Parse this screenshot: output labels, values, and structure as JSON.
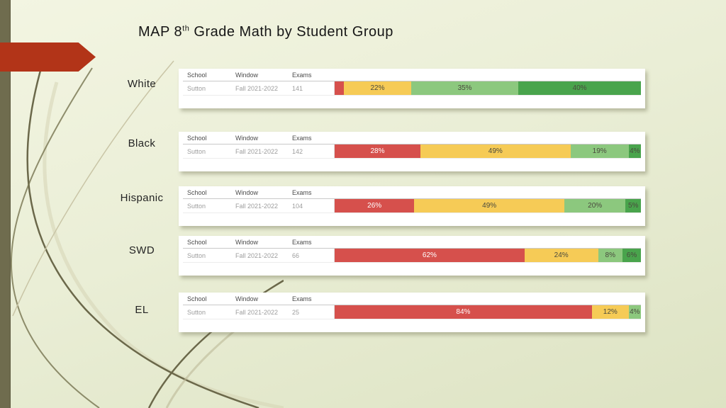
{
  "slide_title": {
    "text_before_sup": "MAP 8",
    "sup": "th",
    "text_after_sup": " Grade Math by Student Group"
  },
  "table_headers": {
    "school": "School",
    "window": "Window",
    "exams": "Exams"
  },
  "colors": {
    "red": "#d6504c",
    "yellow": "#f6cb56",
    "light_green": "#8cc87e",
    "dark_green": "#49a44c",
    "arrow": "#b23418",
    "sidebar": "#6f6c4e",
    "segment_text_dark": "#4a4a3e",
    "segment_text_light": "#ffffff"
  },
  "chart_data": [
    {
      "type": "bar",
      "group": "White",
      "table_row": {
        "school": "Sutton",
        "window": "Fall 2021-2022",
        "exams": "141"
      },
      "segments": [
        {
          "category": "red",
          "value": 3,
          "label": ""
        },
        {
          "category": "yellow",
          "value": 22,
          "label": "22%"
        },
        {
          "category": "light_green",
          "value": 35,
          "label": "35%"
        },
        {
          "category": "dark_green",
          "value": 40,
          "label": "40%"
        }
      ]
    },
    {
      "type": "bar",
      "group": "Black",
      "table_row": {
        "school": "Sutton",
        "window": "Fall 2021-2022",
        "exams": "142"
      },
      "segments": [
        {
          "category": "red",
          "value": 28,
          "label": "28%"
        },
        {
          "category": "yellow",
          "value": 49,
          "label": "49%"
        },
        {
          "category": "light_green",
          "value": 19,
          "label": "19%"
        },
        {
          "category": "dark_green",
          "value": 4,
          "label": "4%"
        }
      ]
    },
    {
      "type": "bar",
      "group": "Hispanic",
      "table_row": {
        "school": "Sutton",
        "window": "Fall 2021-2022",
        "exams": "104"
      },
      "segments": [
        {
          "category": "red",
          "value": 26,
          "label": "26%"
        },
        {
          "category": "yellow",
          "value": 49,
          "label": "49%"
        },
        {
          "category": "light_green",
          "value": 20,
          "label": "20%"
        },
        {
          "category": "dark_green",
          "value": 5,
          "label": "5%"
        }
      ]
    },
    {
      "type": "bar",
      "group": "SWD",
      "table_row": {
        "school": "Sutton",
        "window": "Fall 2021-2022",
        "exams": "66"
      },
      "segments": [
        {
          "category": "red",
          "value": 62,
          "label": "62%"
        },
        {
          "category": "yellow",
          "value": 24,
          "label": "24%"
        },
        {
          "category": "light_green",
          "value": 8,
          "label": "8%"
        },
        {
          "category": "dark_green",
          "value": 6,
          "label": "6%"
        }
      ]
    },
    {
      "type": "bar",
      "group": "EL",
      "table_row": {
        "school": "Sutton",
        "window": "Fall 2021-2022",
        "exams": "25"
      },
      "segments": [
        {
          "category": "red",
          "value": 84,
          "label": "84%"
        },
        {
          "category": "yellow",
          "value": 12,
          "label": "12%"
        },
        {
          "category": "light_green",
          "value": 4,
          "label": "4%"
        }
      ]
    }
  ]
}
